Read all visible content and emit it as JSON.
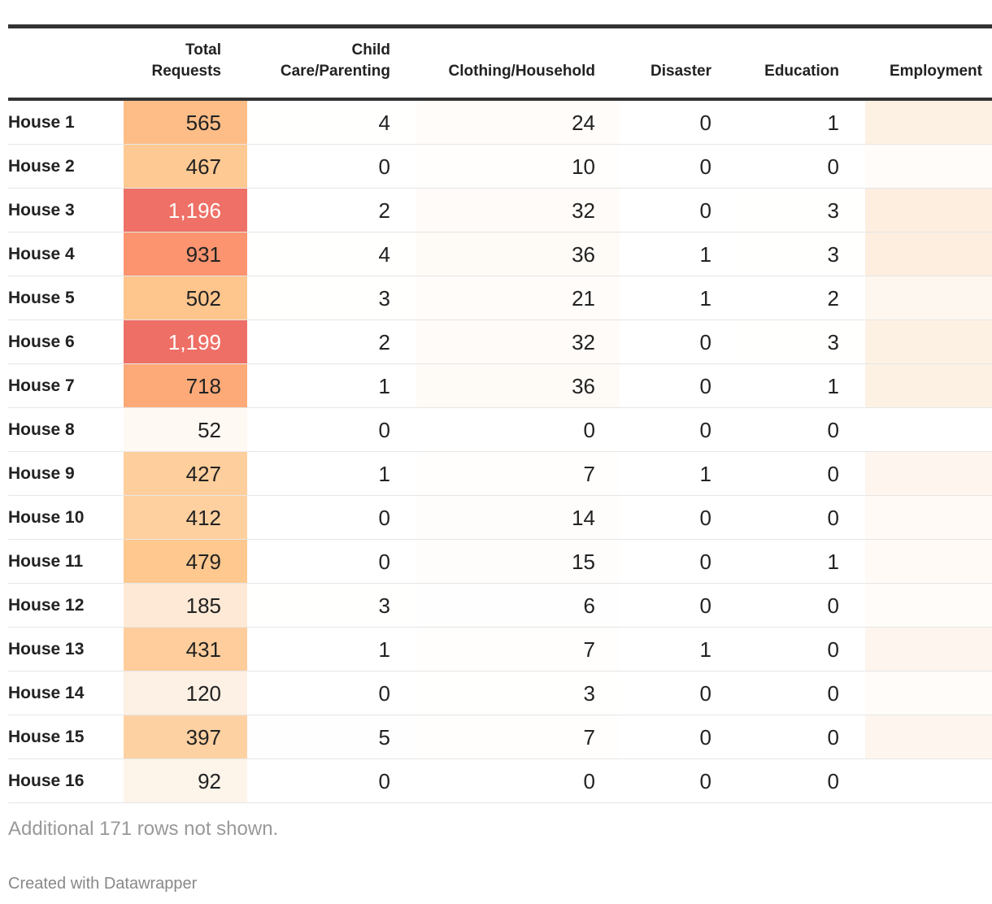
{
  "table": {
    "columns": [
      "",
      "Total Requests",
      "Child Care/Parenting",
      "Clothing/Household",
      "Disaster",
      "Education",
      "Employment"
    ],
    "header_lines": [
      [],
      [
        "Total",
        "Requests"
      ],
      [
        "Child",
        "Care/Parenting"
      ],
      [
        "Clothing/Household"
      ],
      [
        "Disaster"
      ],
      [
        "Education"
      ],
      [
        "Employment"
      ]
    ],
    "rows": [
      [
        "House 1",
        565,
        4,
        24,
        0,
        1
      ],
      [
        "House 2",
        467,
        0,
        10,
        0,
        0
      ],
      [
        "House 3",
        1196,
        2,
        32,
        0,
        3
      ],
      [
        "House 4",
        931,
        4,
        36,
        1,
        3
      ],
      [
        "House 5",
        502,
        3,
        21,
        1,
        2
      ],
      [
        "House 6",
        1199,
        2,
        32,
        0,
        3
      ],
      [
        "House 7",
        718,
        1,
        36,
        0,
        1
      ],
      [
        "House 8",
        52,
        0,
        0,
        0,
        0
      ],
      [
        "House 9",
        427,
        1,
        7,
        1,
        0
      ],
      [
        "House 10",
        412,
        0,
        14,
        0,
        0
      ],
      [
        "House 11",
        479,
        0,
        15,
        0,
        1
      ],
      [
        "House 12",
        185,
        3,
        6,
        0,
        0
      ],
      [
        "House 13",
        431,
        1,
        7,
        1,
        0
      ],
      [
        "House 14",
        120,
        0,
        3,
        0,
        0
      ],
      [
        "House 15",
        397,
        5,
        7,
        0,
        0
      ],
      [
        "House 16",
        92,
        0,
        0,
        0,
        0
      ]
    ],
    "value_labels": {
      "2": "1,196",
      "5": "1,199"
    },
    "employment_colors": [
      "#fdf1e4",
      "#fffcf9",
      "#fdeedf",
      "#fdeedf",
      "#fef7f0",
      "#fdf1e4",
      "#fdf1e4",
      "#ffffff",
      "#fef6ee",
      "#fffaf6",
      "#fffaf6",
      "#fffcf9",
      "#fef6ee",
      "#fffcf9",
      "#fef6ee",
      "#ffffff"
    ]
  },
  "footer": {
    "note": "Additional 171 rows not shown.",
    "credit": "Created with Datawrapper"
  }
}
